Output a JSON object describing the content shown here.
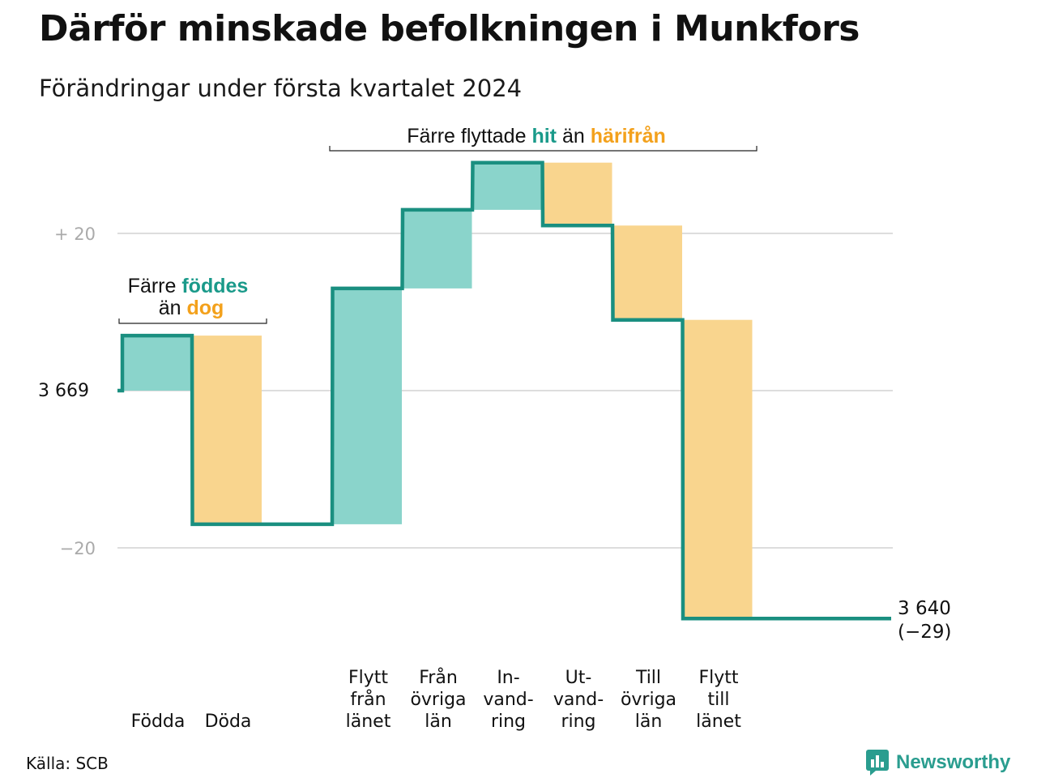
{
  "title": "Därför minskade befolkningen i Munkfors",
  "subtitle": "Förändringar under första kvartalet 2024",
  "source": "Källa: SCB",
  "brand": {
    "name": "Newsworthy",
    "icon": "newsworthy-chart-icon",
    "color": "#2a9d8f"
  },
  "colors": {
    "increase_fill": "#8ad4cb",
    "decrease_fill": "#f9d58e",
    "line": "#1a8f80",
    "teal_text": "#1a9a8a",
    "orange_text": "#f3a11c",
    "grid": "#dddddd"
  },
  "annotations": {
    "births": {
      "line1_prefix": "Färre",
      "line1_highlight": "föddes",
      "line2_prefix": "än",
      "line2_highlight": "dog"
    },
    "moves": {
      "prefix": "Färre flyttade",
      "highlight1": "hit",
      "middle": "än",
      "highlight2": "härifrån"
    }
  },
  "chart_data": {
    "type": "waterfall",
    "start_value": 3669,
    "start_label": "3  669",
    "end_value": 3640,
    "end_label_value": "3 640",
    "end_label_change": "(−29)",
    "y_ticks": [
      {
        "value": 20,
        "label": "+  20"
      },
      {
        "value": 0,
        "label": ""
      },
      {
        "value": -20,
        "label": "−20"
      }
    ],
    "ylim": [
      -34,
      32
    ],
    "steps": [
      {
        "category": "Födda",
        "label_lines": [
          "Födda"
        ],
        "change": 7
      },
      {
        "category": "Döda",
        "label_lines": [
          "Döda"
        ],
        "change": -24
      },
      {
        "category": "",
        "label_lines": [],
        "change": 0,
        "spacer": true
      },
      {
        "category": "Flytt från länet",
        "label_lines": [
          "Flytt",
          "från",
          "länet"
        ],
        "change": 30
      },
      {
        "category": "Från övriga län",
        "label_lines": [
          "Från",
          "övriga",
          "län"
        ],
        "change": 10
      },
      {
        "category": "Invandring",
        "label_lines": [
          "In-",
          "vand-",
          "ring"
        ],
        "change": 6
      },
      {
        "category": "Utvandring",
        "label_lines": [
          "Ut-",
          "vand-",
          "ring"
        ],
        "change": -8
      },
      {
        "category": "Till övriga län",
        "label_lines": [
          "Till",
          "övriga",
          "län"
        ],
        "change": -12
      },
      {
        "category": "Flytt till länet",
        "label_lines": [
          "Flytt",
          "till",
          "länet"
        ],
        "change": -38
      }
    ]
  }
}
